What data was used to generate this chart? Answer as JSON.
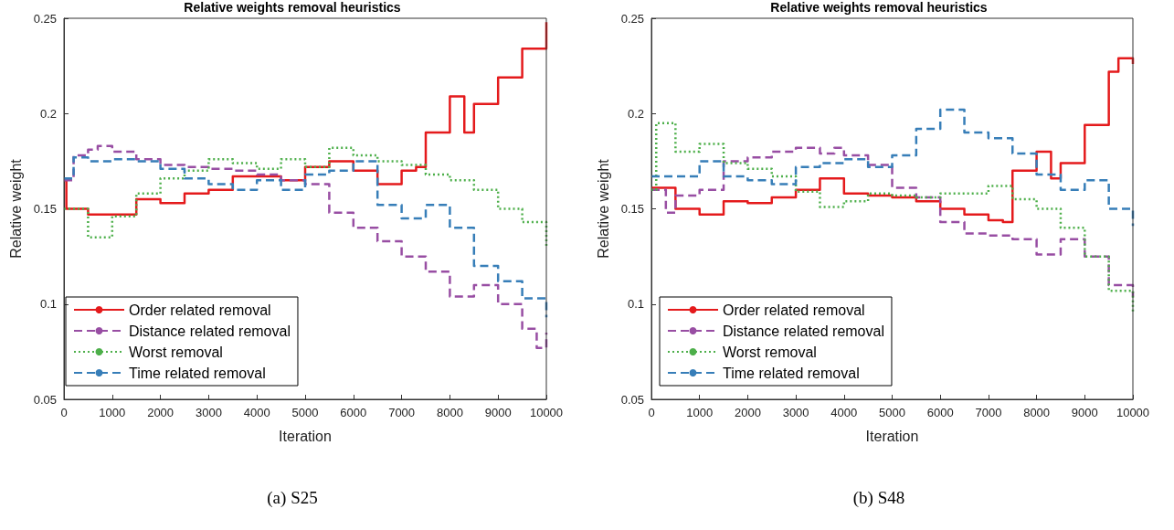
{
  "chart_data": [
    {
      "type": "step",
      "title": "Relative weights removal heuristics",
      "xlabel": "Iteration",
      "ylabel": "Relative weight",
      "annotations": [
        "(a) S25"
      ],
      "xlim": [
        0,
        10000
      ],
      "xticks": [
        0,
        1000,
        2000,
        3000,
        4000,
        5000,
        6000,
        7000,
        8000,
        9000,
        10000
      ],
      "ylim": [
        0.05,
        0.25
      ],
      "yticks": [
        0.05,
        0.1,
        0.15,
        0.2,
        0.25
      ],
      "grid": false,
      "legend": "bottom left",
      "marker": "none",
      "series": [
        {
          "name": "Order related removal",
          "color": "#e41a1c",
          "line_style": "solid",
          "x": [
            0,
            50,
            500,
            1000,
            1500,
            2000,
            2500,
            3000,
            3500,
            4000,
            4500,
            5000,
            5500,
            6000,
            6500,
            7000,
            7300,
            7500,
            8000,
            8300,
            8500,
            9000,
            9500,
            10000
          ],
          "values": [
            0.165,
            0.15,
            0.147,
            0.147,
            0.155,
            0.153,
            0.158,
            0.16,
            0.167,
            0.167,
            0.165,
            0.172,
            0.175,
            0.17,
            0.163,
            0.17,
            0.172,
            0.19,
            0.209,
            0.19,
            0.205,
            0.219,
            0.234,
            0.248
          ]
        },
        {
          "name": "Distance related removal",
          "color": "#984ea3",
          "line_style": "dashed",
          "x": [
            0,
            200,
            500,
            700,
            1000,
            1500,
            2000,
            2500,
            3000,
            3500,
            4000,
            4500,
            5000,
            5500,
            6000,
            6500,
            7000,
            7500,
            8000,
            8500,
            9000,
            9500,
            9800,
            10000
          ],
          "values": [
            0.165,
            0.178,
            0.181,
            0.183,
            0.18,
            0.176,
            0.173,
            0.172,
            0.171,
            0.17,
            0.168,
            0.165,
            0.163,
            0.148,
            0.14,
            0.133,
            0.125,
            0.117,
            0.104,
            0.11,
            0.1,
            0.087,
            0.077,
            0.085
          ]
        },
        {
          "name": "Worst removal",
          "color": "#4daf4a",
          "line_style": "dotted",
          "x": [
            0,
            500,
            1000,
            1500,
            2000,
            2500,
            3000,
            3500,
            4000,
            4500,
            5000,
            5500,
            6000,
            6500,
            7000,
            7500,
            8000,
            8500,
            9000,
            9500,
            10000
          ],
          "values": [
            0.15,
            0.135,
            0.146,
            0.158,
            0.166,
            0.17,
            0.176,
            0.174,
            0.171,
            0.176,
            0.172,
            0.182,
            0.178,
            0.175,
            0.173,
            0.168,
            0.165,
            0.16,
            0.15,
            0.143,
            0.13
          ]
        },
        {
          "name": "Time related removal",
          "color": "#377eb8",
          "line_style": "dashed",
          "x": [
            0,
            200,
            500,
            1000,
            1500,
            2000,
            2500,
            3000,
            3500,
            4000,
            4500,
            5000,
            5500,
            6000,
            6500,
            7000,
            7500,
            8000,
            8500,
            9000,
            9500,
            10000
          ],
          "values": [
            0.166,
            0.177,
            0.175,
            0.176,
            0.175,
            0.171,
            0.166,
            0.163,
            0.16,
            0.165,
            0.16,
            0.168,
            0.17,
            0.175,
            0.152,
            0.145,
            0.152,
            0.14,
            0.12,
            0.112,
            0.103,
            0.093
          ]
        }
      ]
    },
    {
      "type": "step",
      "title": "Relative weights removal heuristics",
      "xlabel": "Iteration",
      "ylabel": "Relative weight",
      "annotations": [
        "(b) S48"
      ],
      "xlim": [
        0,
        10000
      ],
      "xticks": [
        0,
        1000,
        2000,
        3000,
        4000,
        5000,
        6000,
        7000,
        8000,
        9000,
        10000
      ],
      "ylim": [
        0.05,
        0.25
      ],
      "yticks": [
        0.05,
        0.1,
        0.15,
        0.2,
        0.25
      ],
      "grid": false,
      "legend": "bottom left",
      "marker": "none",
      "series": [
        {
          "name": "Order related removal",
          "color": "#e41a1c",
          "line_style": "solid",
          "x": [
            0,
            500,
            1000,
            1500,
            2000,
            2500,
            3000,
            3500,
            4000,
            4500,
            5000,
            5500,
            6000,
            6500,
            7000,
            7300,
            7500,
            8000,
            8300,
            8500,
            9000,
            9500,
            9700,
            10000
          ],
          "values": [
            0.161,
            0.15,
            0.147,
            0.154,
            0.153,
            0.156,
            0.16,
            0.166,
            0.158,
            0.157,
            0.156,
            0.154,
            0.15,
            0.147,
            0.144,
            0.143,
            0.17,
            0.18,
            0.166,
            0.174,
            0.194,
            0.222,
            0.229,
            0.226
          ]
        },
        {
          "name": "Distance related removal",
          "color": "#984ea3",
          "line_style": "dashed",
          "x": [
            0,
            300,
            500,
            1000,
            1500,
            2000,
            2500,
            3000,
            3500,
            3800,
            4000,
            4500,
            5000,
            5500,
            6000,
            6500,
            7000,
            7500,
            8000,
            8500,
            9000,
            9500,
            10000
          ],
          "values": [
            0.16,
            0.148,
            0.157,
            0.16,
            0.175,
            0.177,
            0.18,
            0.182,
            0.179,
            0.182,
            0.178,
            0.173,
            0.161,
            0.156,
            0.143,
            0.137,
            0.136,
            0.134,
            0.126,
            0.134,
            0.125,
            0.11,
            0.104
          ]
        },
        {
          "name": "Worst removal",
          "color": "#4daf4a",
          "line_style": "dotted",
          "x": [
            0,
            100,
            500,
            1000,
            1500,
            2000,
            2500,
            3000,
            3500,
            4000,
            4500,
            5000,
            5500,
            6000,
            6500,
            7000,
            7500,
            8000,
            8500,
            9000,
            9500,
            10000
          ],
          "values": [
            0.16,
            0.195,
            0.18,
            0.184,
            0.174,
            0.171,
            0.167,
            0.159,
            0.151,
            0.154,
            0.158,
            0.157,
            0.156,
            0.158,
            0.158,
            0.162,
            0.155,
            0.15,
            0.14,
            0.125,
            0.107,
            0.096
          ]
        },
        {
          "name": "Time related removal",
          "color": "#377eb8",
          "line_style": "dashed",
          "x": [
            0,
            500,
            1000,
            1500,
            2000,
            2500,
            3000,
            3500,
            4000,
            4500,
            5000,
            5500,
            6000,
            6500,
            7000,
            7500,
            8000,
            8500,
            9000,
            9500,
            10000
          ],
          "values": [
            0.167,
            0.167,
            0.175,
            0.167,
            0.165,
            0.163,
            0.172,
            0.174,
            0.176,
            0.172,
            0.178,
            0.192,
            0.202,
            0.19,
            0.187,
            0.179,
            0.168,
            0.16,
            0.165,
            0.15,
            0.141
          ]
        }
      ]
    }
  ]
}
